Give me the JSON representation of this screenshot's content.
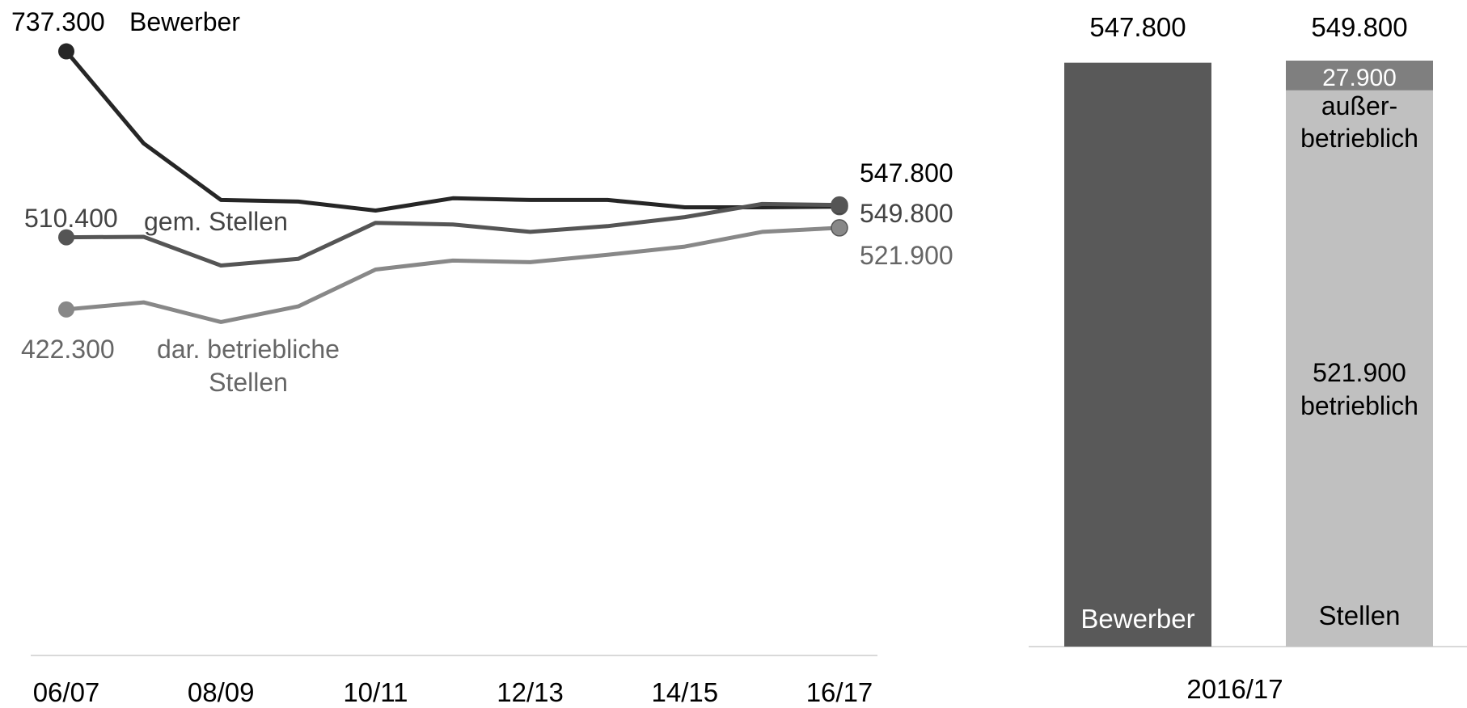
{
  "chart_data": [
    {
      "type": "line",
      "title": "",
      "xlabel": "",
      "ylabel": "",
      "x": [
        "06/07",
        "07/08",
        "08/09",
        "09/10",
        "10/11",
        "11/12",
        "12/13",
        "13/14",
        "14/15",
        "15/16",
        "16/17"
      ],
      "xtick_labels": [
        "06/07",
        "08/09",
        "10/11",
        "12/13",
        "14/15",
        "16/17"
      ],
      "ylim": [
        0,
        800000
      ],
      "grid": false,
      "legend": "none",
      "series": [
        {
          "name": "Bewerber",
          "color": "#262626",
          "values": [
            737300,
            625000,
            556000,
            554000,
            543000,
            558000,
            556000,
            556000,
            547000,
            547000,
            547800
          ],
          "start_label": "737.300",
          "end_label": "547.800"
        },
        {
          "name": "gem. Stellen",
          "color": "#555555",
          "values": [
            510400,
            511000,
            476000,
            484000,
            528000,
            526000,
            517000,
            524000,
            535000,
            551000,
            549800
          ],
          "start_label": "510.400",
          "end_label": "549.800"
        },
        {
          "name": "dar. betriebliche Stellen",
          "name_lines": [
            "dar. betriebliche",
            "Stellen"
          ],
          "color": "#888888",
          "values": [
            422300,
            431000,
            407000,
            426000,
            471000,
            482000,
            480000,
            489000,
            499000,
            517000,
            521900
          ],
          "start_label": "422.300",
          "end_label": "521.900"
        }
      ]
    },
    {
      "type": "bar",
      "stacked": true,
      "title": "",
      "xlabel": "2016/17",
      "ylim": [
        0,
        560000
      ],
      "grid": false,
      "bars": [
        {
          "name": "Bewerber",
          "total": 547800,
          "total_label": "547.800",
          "color": "#595959",
          "segments": []
        },
        {
          "name": "Stellen",
          "total": 549800,
          "total_label": "549.800",
          "segments": [
            {
              "name": "betrieblich",
              "value": 521900,
              "value_label": "521.900",
              "color": "#c0c0c0"
            },
            {
              "name": "außerbetrieblich",
              "name_lines": [
                "außer-",
                "betrieblich"
              ],
              "value": 27900,
              "value_label": "27.900",
              "color": "#7f7f7f"
            }
          ]
        }
      ]
    }
  ]
}
